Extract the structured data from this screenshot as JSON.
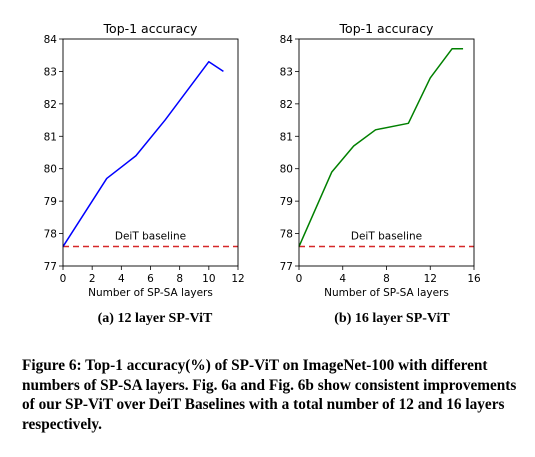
{
  "chart_data": [
    {
      "type": "line",
      "title": "Top-1 accuracy",
      "xlabel": "Number of SP-SA layers",
      "ylabel": "",
      "xlim": [
        0,
        12
      ],
      "ylim": [
        77,
        84
      ],
      "xticks": [
        0,
        2,
        4,
        6,
        8,
        10,
        12
      ],
      "yticks": [
        77,
        78,
        79,
        80,
        81,
        82,
        83,
        84
      ],
      "series": [
        {
          "color": "#0000ff",
          "x": [
            0,
            3,
            5,
            7,
            10,
            11
          ],
          "y": [
            77.6,
            79.7,
            80.4,
            81.5,
            83.3,
            83.0
          ]
        }
      ],
      "baseline": {
        "label": "DeiT baseline",
        "value": 77.6,
        "color": "#d62728",
        "style": "dashed"
      },
      "caption": "(a) 12 layer SP-ViT"
    },
    {
      "type": "line",
      "title": "Top-1 accuracy",
      "xlabel": "Number of SP-SA layers",
      "ylabel": "",
      "xlim": [
        0,
        16
      ],
      "ylim": [
        77,
        84
      ],
      "xticks": [
        0,
        4,
        8,
        12,
        16
      ],
      "yticks": [
        77,
        78,
        79,
        80,
        81,
        82,
        83,
        84
      ],
      "series": [
        {
          "color": "#008000",
          "x": [
            0,
            3,
            5,
            7,
            10,
            12,
            14,
            15
          ],
          "y": [
            77.6,
            79.9,
            80.7,
            81.2,
            81.4,
            82.8,
            83.7,
            83.7
          ]
        }
      ],
      "baseline": {
        "label": "DeiT baseline",
        "value": 77.6,
        "color": "#d62728",
        "style": "dashed"
      },
      "caption": "(b) 16 layer SP-ViT"
    }
  ],
  "figure_caption": "Figure 6: Top-1 accuracy(%) of SP-ViT on ImageNet-100 with different numbers of SP-SA layers. Fig. 6a and Fig. 6b show consistent improvements of our SP-ViT over DeiT Baselines with a total number of 12 and 16 layers respectively."
}
